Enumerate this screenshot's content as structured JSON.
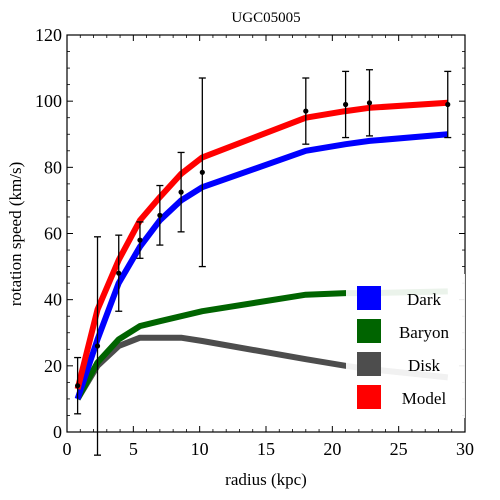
{
  "chart_data": {
    "type": "line",
    "title": "UGC05005",
    "xlabel": "radius (kpc)",
    "ylabel": "rotation speed (km/s)",
    "xlim": [
      0,
      30
    ],
    "ylim": [
      0,
      120
    ],
    "xticks": [
      0,
      5,
      10,
      15,
      20,
      25,
      30
    ],
    "yticks": [
      0,
      20,
      40,
      60,
      80,
      100,
      120
    ],
    "grid": false,
    "legend_position": "bottom-right",
    "series": [
      {
        "name": "Dark",
        "color": "#0000ff",
        "x": [
          0.8,
          2.3,
          3.9,
          5.5,
          7.0,
          8.6,
          10.2,
          18.0,
          21.0,
          22.8,
          28.7
        ],
        "y": [
          10,
          28,
          45,
          56,
          64,
          70,
          74,
          85,
          87,
          88,
          90
        ]
      },
      {
        "name": "Baryon",
        "color": "#006400",
        "x": [
          0.8,
          2.3,
          3.9,
          5.5,
          7.0,
          8.6,
          10.2,
          18.0,
          21.0,
          22.8,
          28.7
        ],
        "y": [
          10,
          21,
          28,
          32,
          33.5,
          35,
          36.5,
          41.5,
          42,
          42,
          42.5
        ]
      },
      {
        "name": "Disk",
        "color": "#4d4d4d",
        "x": [
          0.8,
          2.3,
          3.9,
          5.5,
          7.0,
          8.6,
          10.2,
          18.0,
          21.0,
          22.8,
          28.7
        ],
        "y": [
          10,
          20,
          26,
          28.5,
          28.5,
          28.5,
          27.5,
          22,
          20,
          19,
          16.5
        ]
      },
      {
        "name": "Model",
        "color": "#ff0000",
        "x": [
          0.8,
          2.3,
          3.9,
          5.5,
          7.0,
          8.6,
          10.2,
          18.0,
          21.0,
          22.8,
          28.7
        ],
        "y": [
          13,
          37,
          52,
          64,
          71,
          78,
          83,
          95,
          97,
          98,
          99.5
        ]
      }
    ],
    "observations": {
      "x": [
        0.8,
        2.3,
        3.9,
        5.5,
        7.0,
        8.6,
        10.2,
        18.0,
        21.0,
        22.8,
        28.7
      ],
      "y": [
        14,
        26,
        48,
        58,
        65.5,
        72.5,
        78.5,
        97,
        99,
        99.5,
        99
      ],
      "err": [
        8.5,
        33,
        11.5,
        5.5,
        9,
        12,
        28.5,
        10,
        10,
        10,
        10
      ]
    }
  }
}
